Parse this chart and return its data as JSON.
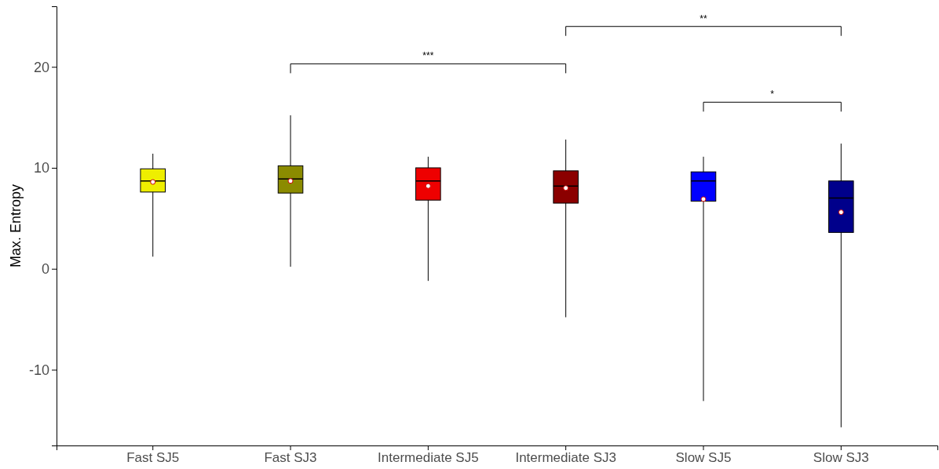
{
  "chart_data": {
    "type": "box",
    "ylabel": "Max. Entropy",
    "categories": [
      "Fast SJ5",
      "Fast SJ3",
      "Intermediate SJ5",
      "Intermediate SJ3",
      "Slow SJ5",
      "Slow SJ3"
    ],
    "colors": [
      "#eeee00",
      "#8b8b00",
      "#ee0000",
      "#8b0000",
      "#0000ff",
      "#00008b"
    ],
    "boxes": [
      {
        "low": 1.2,
        "q1": 7.6,
        "median": 8.7,
        "q3": 9.9,
        "high": 11.4,
        "mean": 8.6
      },
      {
        "low": 0.2,
        "q1": 7.5,
        "median": 8.9,
        "q3": 10.2,
        "high": 15.2,
        "mean": 8.7
      },
      {
        "low": -1.2,
        "q1": 6.8,
        "median": 8.7,
        "q3": 10.0,
        "high": 11.1,
        "mean": 8.2
      },
      {
        "low": -4.8,
        "q1": 6.5,
        "median": 8.2,
        "q3": 9.7,
        "high": 12.8,
        "mean": 8.0
      },
      {
        "low": -13.1,
        "q1": 6.7,
        "median": 8.7,
        "q3": 9.6,
        "high": 11.1,
        "mean": 6.9
      },
      {
        "low": -15.7,
        "q1": 3.6,
        "median": 7.0,
        "q3": 8.7,
        "high": 12.4,
        "mean": 5.6
      }
    ],
    "ylim": [
      -17.5,
      26
    ],
    "yticks": [
      -10,
      0,
      10,
      20
    ],
    "grid": false,
    "annotations": [
      "***",
      "**",
      "*"
    ]
  }
}
